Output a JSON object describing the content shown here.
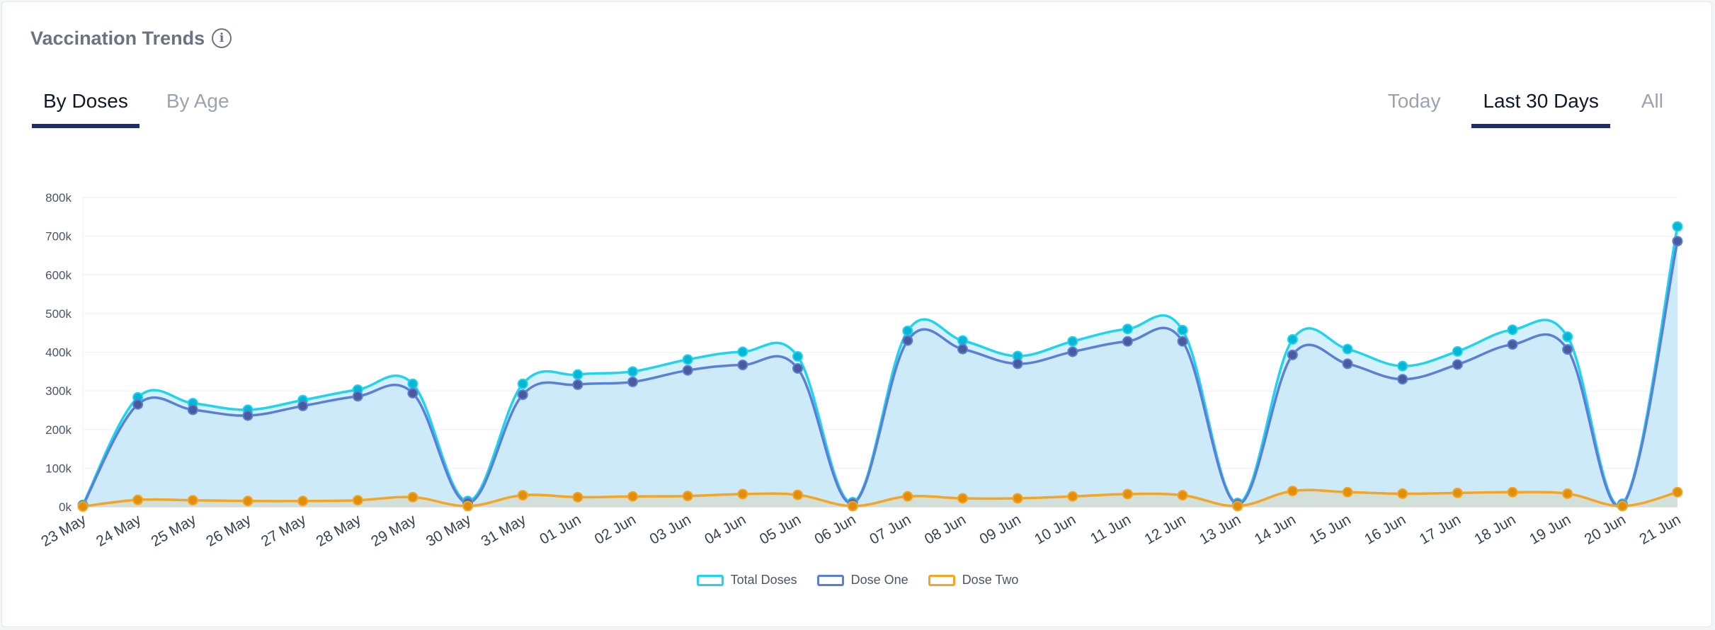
{
  "header": {
    "title": "Vaccination Trends",
    "info_icon": "info-circle-icon"
  },
  "tabs_left": [
    {
      "label": "By Doses",
      "active": true
    },
    {
      "label": "By Age",
      "active": false
    }
  ],
  "tabs_right": [
    {
      "label": "Today",
      "active": false
    },
    {
      "label": "Last 30 Days",
      "active": true
    },
    {
      "label": "All",
      "active": false
    }
  ],
  "colors": {
    "total": "#22d3ee",
    "dose_one": "#5b7fd6",
    "dose_two": "#f5a524",
    "fill": "#d3f0fb",
    "tab_underline": "#1e2b6f"
  },
  "chart_data": {
    "type": "area",
    "xlabel": "",
    "ylabel": "",
    "ylim": [
      0,
      800000
    ],
    "y_ticks": [
      0,
      100000,
      200000,
      300000,
      400000,
      500000,
      600000,
      700000,
      800000
    ],
    "y_tick_labels": [
      "0k",
      "100k",
      "200k",
      "300k",
      "400k",
      "500k",
      "600k",
      "700k",
      "800k"
    ],
    "categories": [
      "23 May",
      "24 May",
      "25 May",
      "26 May",
      "27 May",
      "28 May",
      "29 May",
      "30 May",
      "31 May",
      "01 Jun",
      "02 Jun",
      "03 Jun",
      "04 Jun",
      "05 Jun",
      "06 Jun",
      "07 Jun",
      "08 Jun",
      "09 Jun",
      "10 Jun",
      "11 Jun",
      "12 Jun",
      "13 Jun",
      "14 Jun",
      "15 Jun",
      "16 Jun",
      "17 Jun",
      "18 Jun",
      "19 Jun",
      "20 Jun",
      "21 Jun"
    ],
    "series": [
      {
        "name": "Total Doses",
        "values": [
          5000,
          283000,
          268000,
          251000,
          276000,
          303000,
          318000,
          15000,
          318000,
          342000,
          350000,
          381000,
          401000,
          389000,
          12000,
          455000,
          430000,
          390000,
          428000,
          460000,
          457000,
          10000,
          433000,
          408000,
          364000,
          402000,
          458000,
          440000,
          8000,
          725000
        ]
      },
      {
        "name": "Dose One",
        "values": [
          3000,
          265000,
          251000,
          236000,
          261000,
          286000,
          294000,
          10000,
          290000,
          316000,
          323000,
          353000,
          367000,
          358000,
          9000,
          430000,
          408000,
          370000,
          401000,
          428000,
          428000,
          7000,
          393000,
          370000,
          330000,
          368000,
          420000,
          407000,
          5000,
          687000
        ]
      },
      {
        "name": "Dose Two",
        "values": [
          1000,
          18000,
          17000,
          15000,
          15000,
          17000,
          25000,
          2000,
          30000,
          25000,
          27000,
          28000,
          33000,
          31000,
          2000,
          27000,
          22000,
          22000,
          27000,
          33000,
          30000,
          2000,
          41000,
          38000,
          34000,
          36000,
          38000,
          34000,
          2000,
          38000
        ]
      }
    ],
    "grid": true,
    "legend_position": "bottom-center"
  }
}
